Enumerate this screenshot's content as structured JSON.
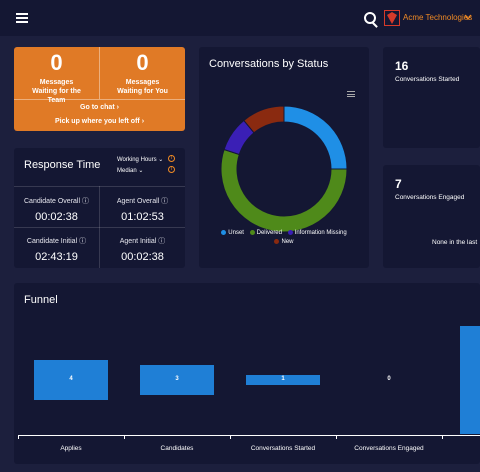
{
  "header": {
    "brand_name": "Acme Technologies",
    "icons": [
      "hamburger-icon",
      "search-icon",
      "brand-logo",
      "chevron-down-icon"
    ],
    "brand_color": "#f08a24"
  },
  "messages": {
    "team_count": "0",
    "team_label": "Messages Waiting for the Team",
    "you_count": "0",
    "you_label": "Messages Waiting for You",
    "go_to_chat": "Go to chat ›",
    "pick_up": "Pick up where you left off ›",
    "color": "#e07a26"
  },
  "response_time": {
    "title": "Response Time",
    "hours_option": "Working Hours ⌄",
    "stat_option": "Median ⌄",
    "cells": [
      {
        "label": "Candidate Overall ⓘ",
        "value": "00:02:38"
      },
      {
        "label": "Agent Overall ⓘ",
        "value": "01:02:53"
      },
      {
        "label": "Candidate Initial ⓘ",
        "value": "02:43:19"
      },
      {
        "label": "Agent Initial ⓘ",
        "value": "00:02:38"
      }
    ]
  },
  "status_chart": {
    "title": "Conversations by Status",
    "legend": [
      {
        "name": "Unset",
        "color": "#1f8fe6"
      },
      {
        "name": "Delivered",
        "color": "#4f8a1a"
      },
      {
        "name": "Information Missing",
        "color": "#3a1fb5"
      },
      {
        "name": "New",
        "color": "#8a2a10"
      }
    ]
  },
  "stats": {
    "started_value": "16",
    "started_label": "Conversations Started",
    "engaged_value": "7",
    "engaged_label": "Conversations Engaged",
    "none_text": "None in the last"
  },
  "chart_data": [
    {
      "type": "pie",
      "title": "Conversations by Status",
      "categories": [
        "Unset",
        "Delivered",
        "Information Missing",
        "New"
      ],
      "values": [
        25,
        55,
        9,
        11
      ]
    },
    {
      "type": "bar",
      "title": "Funnel",
      "categories": [
        "Applies",
        "Candidates",
        "Conversations Started",
        "Conversations Engaged"
      ],
      "values": [
        4,
        3,
        1,
        0
      ],
      "value_labels": [
        "4",
        "3",
        "1",
        "0"
      ]
    }
  ]
}
